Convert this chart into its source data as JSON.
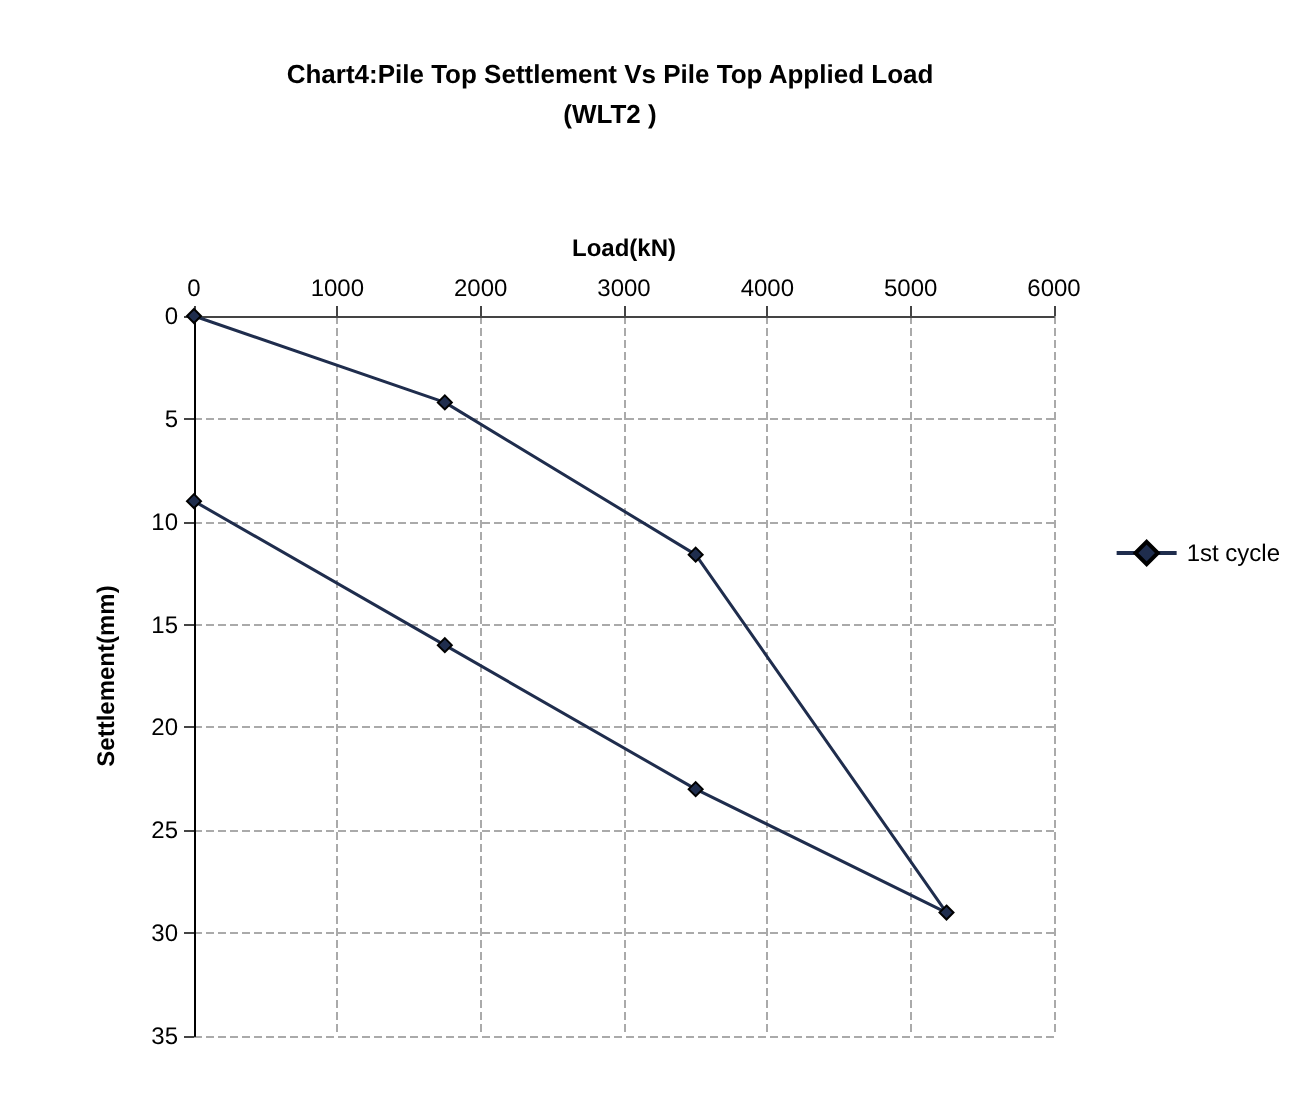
{
  "chart_data": {
    "type": "line",
    "title": "Chart4:Pile Top Settlement Vs Pile Top Applied Load\n(WLT2 )",
    "xlabel": "Load(kN)",
    "ylabel": "Settlement(mm)",
    "series": [
      {
        "name": "1st cycle",
        "color": "#1f2d4d",
        "x": [
          0,
          1750,
          3500,
          5250,
          3500,
          1750,
          0
        ],
        "values": [
          0,
          4.2,
          11.6,
          29,
          23,
          16,
          9
        ]
      }
    ],
    "xlim": [
      0,
      6000
    ],
    "xticks": [
      0,
      1000,
      2000,
      3000,
      4000,
      5000,
      6000
    ],
    "ylim": [
      35,
      0
    ],
    "yticks": [
      0,
      5,
      10,
      15,
      20,
      25,
      30,
      35
    ],
    "grid": true,
    "legend": "right",
    "marker": "diamond",
    "line_style": "solid"
  }
}
